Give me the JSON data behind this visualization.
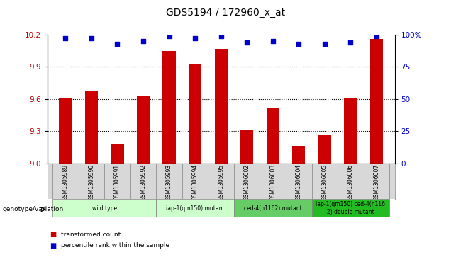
{
  "title": "GDS5194 / 172960_x_at",
  "samples": [
    "GSM1305989",
    "GSM1305990",
    "GSM1305991",
    "GSM1305992",
    "GSM1305993",
    "GSM1305994",
    "GSM1305995",
    "GSM1306002",
    "GSM1306003",
    "GSM1306004",
    "GSM1306005",
    "GSM1306006",
    "GSM1306007"
  ],
  "bar_values": [
    9.61,
    9.67,
    9.18,
    9.63,
    10.05,
    9.92,
    10.07,
    9.31,
    9.52,
    9.16,
    9.26,
    9.61,
    10.16
  ],
  "percentile_values": [
    97,
    97,
    93,
    95,
    99,
    97,
    99,
    94,
    95,
    93,
    93,
    94,
    99
  ],
  "bar_color": "#cc0000",
  "dot_color": "#0000cc",
  "ylim_left": [
    9.0,
    10.2
  ],
  "ylim_right": [
    0,
    100
  ],
  "yticks_left": [
    9.0,
    9.3,
    9.6,
    9.9,
    10.2
  ],
  "yticks_right": [
    0,
    25,
    50,
    75,
    100
  ],
  "ytick_labels_right": [
    "0",
    "25",
    "50",
    "75",
    "100%"
  ],
  "grid_values": [
    9.3,
    9.6,
    9.9
  ],
  "groups": [
    {
      "label": "wild type",
      "start": 0,
      "end": 3,
      "color": "#ccffcc"
    },
    {
      "label": "iap-1(qm150) mutant",
      "start": 4,
      "end": 6,
      "color": "#ccffcc"
    },
    {
      "label": "ced-4(n1162) mutant",
      "start": 7,
      "end": 9,
      "color": "#66cc66"
    },
    {
      "label": "iap-1(qm150) ced-4(n116\n2) double mutant",
      "start": 10,
      "end": 12,
      "color": "#22bb22"
    }
  ],
  "genotype_label": "genotype/variation",
  "legend_bar_label": "transformed count",
  "legend_dot_label": "percentile rank within the sample",
  "sample_bg_color": "#d8d8d8",
  "bar_width": 0.5
}
